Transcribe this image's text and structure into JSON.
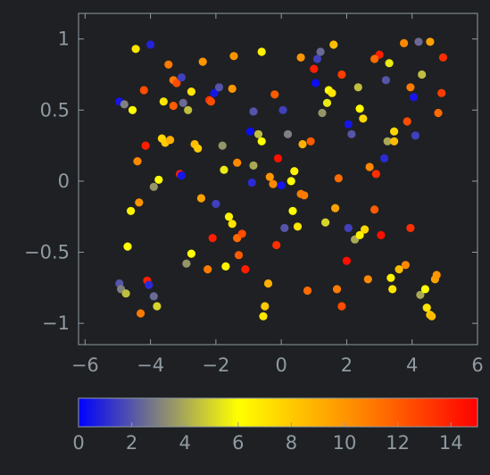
{
  "chart_data": {
    "type": "scatter",
    "title": "",
    "xlabel": "",
    "ylabel": "",
    "xlim": [
      -6.2,
      6.0
    ],
    "ylim": [
      -1.15,
      1.18
    ],
    "xticks": [
      -6,
      -4,
      -2,
      0,
      2,
      4,
      6
    ],
    "xtick_labels": [
      "−6",
      "−4",
      "−2",
      "0",
      "2",
      "4",
      "6"
    ],
    "yticks": [
      1,
      0.5,
      0,
      -0.5,
      -1
    ],
    "ytick_labels": [
      "1",
      "0.5",
      "0",
      "−0.5",
      "−1"
    ],
    "grid": false,
    "colorbar": {
      "range": [
        0,
        15
      ],
      "ticks": [
        0,
        2,
        4,
        6,
        8,
        10,
        12,
        14
      ],
      "tick_labels": [
        "0",
        "2",
        "4",
        "6",
        "8",
        "10",
        "12",
        "14"
      ],
      "colors": [
        "#0000ff",
        "#ffff00",
        "#ff8000",
        "#ff0000"
      ]
    },
    "points": [
      {
        "x": -4.95,
        "y": 0.56,
        "c": 0.5
      },
      {
        "x": -4.8,
        "y": 0.54,
        "c": 3.0
      },
      {
        "x": -4.55,
        "y": 0.5,
        "c": 6.0
      },
      {
        "x": -4.45,
        "y": 0.93,
        "c": 7.0
      },
      {
        "x": -4.0,
        "y": 0.96,
        "c": 0.8
      },
      {
        "x": -4.2,
        "y": 0.64,
        "c": 12.5
      },
      {
        "x": -4.15,
        "y": 0.25,
        "c": 14.0
      },
      {
        "x": -4.4,
        "y": 0.14,
        "c": 10.5
      },
      {
        "x": -3.9,
        "y": -0.04,
        "c": 3.5
      },
      {
        "x": -3.75,
        "y": 0.01,
        "c": 6.0
      },
      {
        "x": -4.6,
        "y": -0.21,
        "c": 6.5
      },
      {
        "x": -4.35,
        "y": -0.15,
        "c": 10.0
      },
      {
        "x": -4.7,
        "y": -0.46,
        "c": 6.0
      },
      {
        "x": -4.95,
        "y": -0.72,
        "c": 2.0
      },
      {
        "x": -4.9,
        "y": -0.76,
        "c": 3.0
      },
      {
        "x": -4.75,
        "y": -0.79,
        "c": 4.5
      },
      {
        "x": -4.1,
        "y": -0.7,
        "c": 14.0
      },
      {
        "x": -4.05,
        "y": -0.73,
        "c": 1.0
      },
      {
        "x": -3.9,
        "y": -0.81,
        "c": 2.5
      },
      {
        "x": -3.8,
        "y": -0.88,
        "c": 5.0
      },
      {
        "x": -4.3,
        "y": -0.93,
        "c": 11.0
      },
      {
        "x": -3.45,
        "y": 0.82,
        "c": 11.0
      },
      {
        "x": -3.3,
        "y": 0.71,
        "c": 11.0
      },
      {
        "x": -3.2,
        "y": 0.69,
        "c": 12.5
      },
      {
        "x": -3.05,
        "y": 0.73,
        "c": 1.5
      },
      {
        "x": -3.6,
        "y": 0.56,
        "c": 7.0
      },
      {
        "x": -3.3,
        "y": 0.53,
        "c": 12.0
      },
      {
        "x": -3.0,
        "y": 0.55,
        "c": 2.5
      },
      {
        "x": -2.85,
        "y": 0.5,
        "c": 4.5
      },
      {
        "x": -2.75,
        "y": 0.63,
        "c": 7.0
      },
      {
        "x": -2.4,
        "y": 0.84,
        "c": 10.0
      },
      {
        "x": -3.65,
        "y": 0.3,
        "c": 7.5
      },
      {
        "x": -3.55,
        "y": 0.27,
        "c": 8.0
      },
      {
        "x": -3.4,
        "y": 0.29,
        "c": 9.0
      },
      {
        "x": -3.1,
        "y": 0.05,
        "c": 14.0
      },
      {
        "x": -3.05,
        "y": 0.04,
        "c": 0.5
      },
      {
        "x": -2.65,
        "y": 0.26,
        "c": 8.5
      },
      {
        "x": -2.55,
        "y": 0.23,
        "c": 8.0
      },
      {
        "x": -2.2,
        "y": 0.57,
        "c": 13.5
      },
      {
        "x": -2.15,
        "y": 0.56,
        "c": 12.5
      },
      {
        "x": -2.05,
        "y": 0.62,
        "c": 0.5
      },
      {
        "x": -1.9,
        "y": 0.66,
        "c": 2.0
      },
      {
        "x": -1.45,
        "y": 0.88,
        "c": 10.0
      },
      {
        "x": -1.5,
        "y": 0.65,
        "c": 10.0
      },
      {
        "x": -1.8,
        "y": 0.25,
        "c": 3.5
      },
      {
        "x": -1.75,
        "y": 0.08,
        "c": 5.5
      },
      {
        "x": -1.35,
        "y": 0.13,
        "c": 10.5
      },
      {
        "x": -2.0,
        "y": -0.16,
        "c": 1.5
      },
      {
        "x": -2.45,
        "y": -0.12,
        "c": 9.5
      },
      {
        "x": -1.6,
        "y": -0.25,
        "c": 6.5
      },
      {
        "x": -1.5,
        "y": -0.3,
        "c": 7.0
      },
      {
        "x": -2.1,
        "y": -0.4,
        "c": 14.0
      },
      {
        "x": -1.35,
        "y": -0.4,
        "c": 11.5
      },
      {
        "x": -1.2,
        "y": -0.37,
        "c": 12.5
      },
      {
        "x": -2.75,
        "y": -0.51,
        "c": 6.0
      },
      {
        "x": -2.9,
        "y": -0.58,
        "c": 3.5
      },
      {
        "x": -2.25,
        "y": -0.62,
        "c": 11.0
      },
      {
        "x": -1.7,
        "y": -0.6,
        "c": 6.5
      },
      {
        "x": -1.3,
        "y": -0.52,
        "c": 12.0
      },
      {
        "x": -1.1,
        "y": -0.62,
        "c": 14.0
      },
      {
        "x": -0.6,
        "y": 0.91,
        "c": 6.5
      },
      {
        "x": -0.85,
        "y": 0.49,
        "c": 2.0
      },
      {
        "x": -0.95,
        "y": 0.35,
        "c": 0.3
      },
      {
        "x": -0.7,
        "y": 0.33,
        "c": 4.5
      },
      {
        "x": -0.6,
        "y": 0.28,
        "c": 6.0
      },
      {
        "x": -0.85,
        "y": 0.11,
        "c": 4.0
      },
      {
        "x": -0.9,
        "y": -0.01,
        "c": 1.0
      },
      {
        "x": -0.35,
        "y": 0.03,
        "c": 10.0
      },
      {
        "x": -0.25,
        "y": -0.02,
        "c": 10.5
      },
      {
        "x": -0.1,
        "y": 0.16,
        "c": 14.5
      },
      {
        "x": 0.05,
        "y": 0.5,
        "c": 1.5
      },
      {
        "x": -0.2,
        "y": 0.61,
        "c": 12.0
      },
      {
        "x": 0.2,
        "y": 0.33,
        "c": 3.0
      },
      {
        "x": 0.0,
        "y": -0.03,
        "c": 0.5
      },
      {
        "x": 0.3,
        "y": 0.0,
        "c": 6.0
      },
      {
        "x": 0.4,
        "y": 0.07,
        "c": 6.5
      },
      {
        "x": 0.6,
        "y": -0.09,
        "c": 11.0
      },
      {
        "x": 0.7,
        "y": -0.1,
        "c": 11.0
      },
      {
        "x": 0.1,
        "y": -0.33,
        "c": 2.0
      },
      {
        "x": 0.35,
        "y": -0.21,
        "c": 6.0
      },
      {
        "x": 0.5,
        "y": -0.32,
        "c": 7.0
      },
      {
        "x": -0.15,
        "y": -0.45,
        "c": 13.5
      },
      {
        "x": -0.4,
        "y": -0.72,
        "c": 9.0
      },
      {
        "x": -0.5,
        "y": -0.88,
        "c": 8.0
      },
      {
        "x": -0.55,
        "y": -0.95,
        "c": 7.0
      },
      {
        "x": 0.8,
        "y": -0.77,
        "c": 11.5
      },
      {
        "x": 0.6,
        "y": 0.87,
        "c": 10.0
      },
      {
        "x": 1.0,
        "y": 0.79,
        "c": 14.0
      },
      {
        "x": 1.1,
        "y": 0.86,
        "c": 1.5
      },
      {
        "x": 1.2,
        "y": 0.91,
        "c": 2.5
      },
      {
        "x": 1.6,
        "y": 0.96,
        "c": 8.5
      },
      {
        "x": 1.05,
        "y": 0.69,
        "c": 0.3
      },
      {
        "x": 1.45,
        "y": 0.64,
        "c": 6.0
      },
      {
        "x": 1.55,
        "y": 0.62,
        "c": 7.0
      },
      {
        "x": 1.4,
        "y": 0.55,
        "c": 5.5
      },
      {
        "x": 1.25,
        "y": 0.48,
        "c": 3.5
      },
      {
        "x": 1.85,
        "y": 0.75,
        "c": 13.0
      },
      {
        "x": 2.35,
        "y": 0.66,
        "c": 4.5
      },
      {
        "x": 0.65,
        "y": 0.26,
        "c": 9.0
      },
      {
        "x": 0.9,
        "y": 0.28,
        "c": 12.0
      },
      {
        "x": 2.05,
        "y": 0.4,
        "c": 0.5
      },
      {
        "x": 2.15,
        "y": 0.33,
        "c": 2.0
      },
      {
        "x": 2.4,
        "y": 0.51,
        "c": 6.0
      },
      {
        "x": 2.5,
        "y": 0.44,
        "c": 7.5
      },
      {
        "x": 1.75,
        "y": 0.02,
        "c": 11.5
      },
      {
        "x": 1.35,
        "y": -0.29,
        "c": 5.0
      },
      {
        "x": 1.65,
        "y": -0.19,
        "c": 9.5
      },
      {
        "x": 2.05,
        "y": -0.33,
        "c": 1.5
      },
      {
        "x": 2.25,
        "y": -0.41,
        "c": 4.0
      },
      {
        "x": 2.4,
        "y": -0.38,
        "c": 6.5
      },
      {
        "x": 2.55,
        "y": -0.34,
        "c": 7.5
      },
      {
        "x": 2.0,
        "y": -0.56,
        "c": 14.5
      },
      {
        "x": 1.7,
        "y": -0.76,
        "c": 11.0
      },
      {
        "x": 1.85,
        "y": -0.88,
        "c": 12.5
      },
      {
        "x": 2.65,
        "y": -0.69,
        "c": 10.5
      },
      {
        "x": 2.85,
        "y": -0.2,
        "c": 12.0
      },
      {
        "x": 3.05,
        "y": -0.38,
        "c": 14.5
      },
      {
        "x": 3.0,
        "y": 0.89,
        "c": 14.0
      },
      {
        "x": 2.85,
        "y": 0.86,
        "c": 11.5
      },
      {
        "x": 3.2,
        "y": 0.71,
        "c": 2.0
      },
      {
        "x": 3.3,
        "y": 0.83,
        "c": 5.5
      },
      {
        "x": 3.75,
        "y": 0.97,
        "c": 10.5
      },
      {
        "x": 3.95,
        "y": 0.66,
        "c": 11.0
      },
      {
        "x": 4.2,
        "y": 0.98,
        "c": 2.5
      },
      {
        "x": 4.55,
        "y": 0.98,
        "c": 9.5
      },
      {
        "x": 4.3,
        "y": 0.75,
        "c": 4.5
      },
      {
        "x": 4.05,
        "y": 0.59,
        "c": 0.5
      },
      {
        "x": 3.85,
        "y": 0.42,
        "c": 12.5
      },
      {
        "x": 3.45,
        "y": 0.35,
        "c": 7.5
      },
      {
        "x": 3.25,
        "y": 0.28,
        "c": 4.0
      },
      {
        "x": 3.45,
        "y": 0.28,
        "c": 8.5
      },
      {
        "x": 3.15,
        "y": 0.16,
        "c": 1.0
      },
      {
        "x": 2.7,
        "y": 0.1,
        "c": 10.5
      },
      {
        "x": 2.9,
        "y": 0.05,
        "c": 13.5
      },
      {
        "x": 4.1,
        "y": 0.32,
        "c": 1.5
      },
      {
        "x": 4.95,
        "y": 0.87,
        "c": 13.5
      },
      {
        "x": 4.9,
        "y": 0.62,
        "c": 13.0
      },
      {
        "x": 4.8,
        "y": 0.48,
        "c": 11.5
      },
      {
        "x": 3.95,
        "y": -0.33,
        "c": 13.5
      },
      {
        "x": 3.35,
        "y": -0.68,
        "c": 6.5
      },
      {
        "x": 3.4,
        "y": -0.76,
        "c": 7.0
      },
      {
        "x": 3.6,
        "y": -0.62,
        "c": 8.5
      },
      {
        "x": 3.8,
        "y": -0.59,
        "c": 10.5
      },
      {
        "x": 4.25,
        "y": -0.8,
        "c": 4.0
      },
      {
        "x": 4.4,
        "y": -0.76,
        "c": 6.0
      },
      {
        "x": 4.45,
        "y": -0.89,
        "c": 7.0
      },
      {
        "x": 4.55,
        "y": -0.94,
        "c": 8.0
      },
      {
        "x": 4.6,
        "y": -0.95,
        "c": 8.5
      },
      {
        "x": 4.7,
        "y": -0.69,
        "c": 9.5
      },
      {
        "x": 4.75,
        "y": -0.66,
        "c": 10.0
      }
    ]
  }
}
